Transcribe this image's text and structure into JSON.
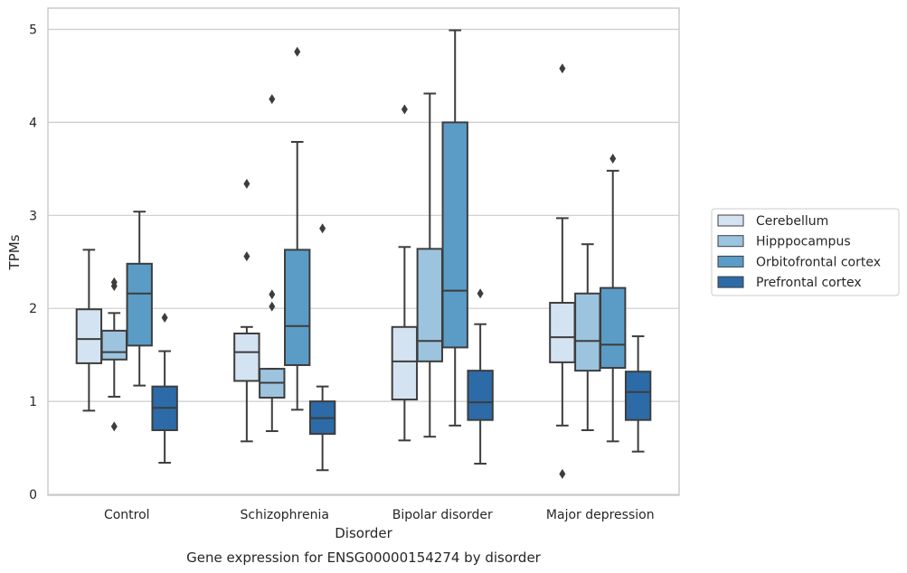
{
  "chart_data": {
    "type": "box",
    "caption": "Gene expression for ENSG00000154274 by disorder",
    "xlabel": "Disorder",
    "ylabel": "TPMs",
    "ylim": [
      0,
      5.25
    ],
    "yticks": [
      0,
      1,
      2,
      3,
      4,
      5
    ],
    "grid": "horizontal",
    "legend_position": "right",
    "categories": [
      "Control",
      "Schizophrenia",
      "Bipolar disorder",
      "Major depression"
    ],
    "series": [
      {
        "name": "Cerebellum",
        "color": "#d4e3f2",
        "boxes": [
          {
            "whisker_low": 0.9,
            "q1": 1.41,
            "median": 1.67,
            "q3": 1.99,
            "whisker_high": 2.63,
            "outliers": []
          },
          {
            "whisker_low": 0.57,
            "q1": 1.22,
            "median": 1.53,
            "q3": 1.73,
            "whisker_high": 1.8,
            "outliers": [
              2.56,
              3.34
            ]
          },
          {
            "whisker_low": 0.58,
            "q1": 1.02,
            "median": 1.43,
            "q3": 1.8,
            "whisker_high": 2.66,
            "outliers": [
              4.14
            ]
          },
          {
            "whisker_low": 0.74,
            "q1": 1.42,
            "median": 1.69,
            "q3": 2.06,
            "whisker_high": 2.97,
            "outliers": [
              0.22,
              4.58
            ]
          }
        ]
      },
      {
        "name": "Hipppocampus",
        "color": "#9cc4df",
        "boxes": [
          {
            "whisker_low": 1.05,
            "q1": 1.45,
            "median": 1.53,
            "q3": 1.76,
            "whisker_high": 1.95,
            "outliers": [
              0.73,
              2.24,
              2.28
            ]
          },
          {
            "whisker_low": 0.68,
            "q1": 1.04,
            "median": 1.2,
            "q3": 1.35,
            "whisker_high": 1.35,
            "outliers": [
              2.02,
              2.15,
              4.25
            ]
          },
          {
            "whisker_low": 0.62,
            "q1": 1.43,
            "median": 1.65,
            "q3": 2.64,
            "whisker_high": 4.31,
            "outliers": []
          },
          {
            "whisker_low": 0.69,
            "q1": 1.33,
            "median": 1.65,
            "q3": 2.16,
            "whisker_high": 2.69,
            "outliers": []
          }
        ]
      },
      {
        "name": "Orbitofrontal cortex",
        "color": "#5b9cc6",
        "boxes": [
          {
            "whisker_low": 1.17,
            "q1": 1.6,
            "median": 2.16,
            "q3": 2.48,
            "whisker_high": 3.04,
            "outliers": []
          },
          {
            "whisker_low": 0.91,
            "q1": 1.39,
            "median": 1.81,
            "q3": 2.63,
            "whisker_high": 3.79,
            "outliers": [
              4.76
            ]
          },
          {
            "whisker_low": 0.74,
            "q1": 1.58,
            "median": 2.19,
            "q3": 4.0,
            "whisker_high": 4.99,
            "outliers": []
          },
          {
            "whisker_low": 0.57,
            "q1": 1.36,
            "median": 1.61,
            "q3": 2.22,
            "whisker_high": 3.48,
            "outliers": [
              3.61
            ]
          }
        ]
      },
      {
        "name": "Prefrontal cortex",
        "color": "#2c6ba7",
        "boxes": [
          {
            "whisker_low": 0.34,
            "q1": 0.69,
            "median": 0.93,
            "q3": 1.16,
            "whisker_high": 1.54,
            "outliers": [
              1.9
            ]
          },
          {
            "whisker_low": 0.26,
            "q1": 0.65,
            "median": 0.82,
            "q3": 1.0,
            "whisker_high": 1.16,
            "outliers": [
              2.86
            ]
          },
          {
            "whisker_low": 0.33,
            "q1": 0.8,
            "median": 0.99,
            "q3": 1.33,
            "whisker_high": 1.83,
            "outliers": [
              2.16
            ]
          },
          {
            "whisker_low": 0.46,
            "q1": 0.8,
            "median": 1.1,
            "q3": 1.32,
            "whisker_high": 1.7,
            "outliers": []
          }
        ]
      }
    ]
  }
}
